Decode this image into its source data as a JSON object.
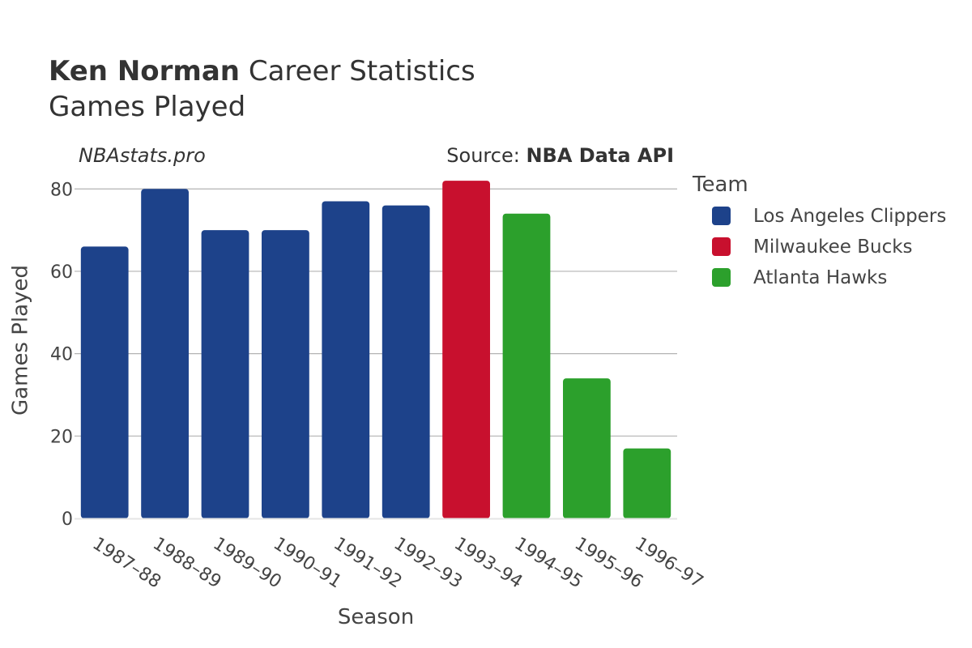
{
  "header": {
    "player": "Ken Norman",
    "title_rest": "Career Statistics",
    "subtitle": "Games Played",
    "watermark": "NBAstats.pro",
    "source_prefix": "Source: ",
    "source_name": "NBA Data API"
  },
  "chart_data": {
    "type": "bar",
    "xlabel": "Season",
    "ylabel": "Games Played",
    "ylim": [
      0,
      83
    ],
    "yticks": [
      0,
      20,
      40,
      60,
      80
    ],
    "grid": true,
    "legend": {
      "title": "Team",
      "placement": "right",
      "entries": [
        {
          "name": "Los Angeles Clippers",
          "color": "#1d428a"
        },
        {
          "name": "Milwaukee Bucks",
          "color": "#c8102e"
        },
        {
          "name": "Atlanta Hawks",
          "color": "#2ca02c"
        }
      ]
    },
    "bars": [
      {
        "season": "1987–88",
        "team": "Los Angeles Clippers",
        "value": 66
      },
      {
        "season": "1988–89",
        "team": "Los Angeles Clippers",
        "value": 80
      },
      {
        "season": "1989–90",
        "team": "Los Angeles Clippers",
        "value": 70
      },
      {
        "season": "1990–91",
        "team": "Los Angeles Clippers",
        "value": 70
      },
      {
        "season": "1991–92",
        "team": "Los Angeles Clippers",
        "value": 77
      },
      {
        "season": "1992–93",
        "team": "Los Angeles Clippers",
        "value": 76
      },
      {
        "season": "1993–94",
        "team": "Milwaukee Bucks",
        "value": 82
      },
      {
        "season": "1994–95",
        "team": "Atlanta Hawks",
        "value": 74
      },
      {
        "season": "1995–96",
        "team": "Atlanta Hawks",
        "value": 34
      },
      {
        "season": "1996–97",
        "team": "Atlanta Hawks",
        "value": 17
      }
    ]
  }
}
